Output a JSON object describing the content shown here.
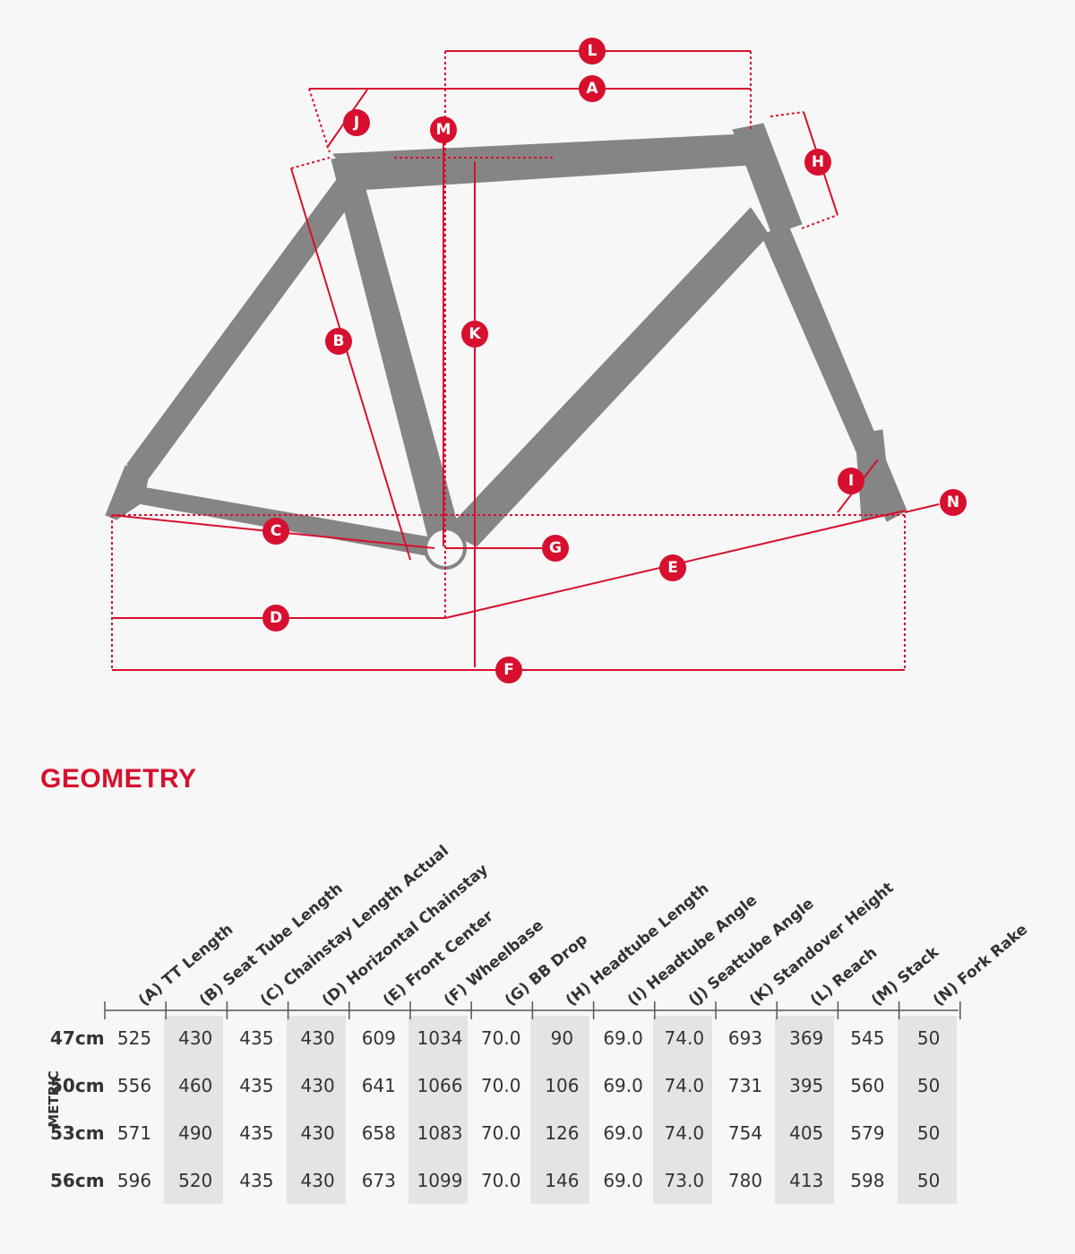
{
  "diagram": {
    "markers": [
      "A",
      "B",
      "C",
      "D",
      "E",
      "F",
      "G",
      "H",
      "I",
      "J",
      "K",
      "L",
      "M",
      "N"
    ],
    "accent_color": "#d6102e",
    "frame_color": "#858585"
  },
  "section_title": "GEOMETRY",
  "unit_label": "METRIC",
  "table": {
    "columns": [
      "(A) TT Length",
      "(B) Seat Tube Length",
      "(C) Chainstay Length Actual",
      "(D) Horizontal Chainstay",
      "(E) Front Center",
      "(F) Wheelbase",
      "(G) BB Drop",
      "(H) Headtube Length",
      "(I) Headtube Angle",
      "(J) Seattube Angle",
      "(K) Standover Height",
      "(L) Reach",
      "(M) Stack",
      "(N) Fork Rake"
    ],
    "rows": [
      {
        "size": "47cm",
        "values": [
          "525",
          "430",
          "435",
          "430",
          "609",
          "1034",
          "70.0",
          "90",
          "69.0",
          "74.0",
          "693",
          "369",
          "545",
          "50"
        ]
      },
      {
        "size": "50cm",
        "values": [
          "556",
          "460",
          "435",
          "430",
          "641",
          "1066",
          "70.0",
          "106",
          "69.0",
          "74.0",
          "731",
          "395",
          "560",
          "50"
        ]
      },
      {
        "size": "53cm",
        "values": [
          "571",
          "490",
          "435",
          "430",
          "658",
          "1083",
          "70.0",
          "126",
          "69.0",
          "74.0",
          "754",
          "405",
          "579",
          "50"
        ]
      },
      {
        "size": "56cm",
        "values": [
          "596",
          "520",
          "435",
          "430",
          "673",
          "1099",
          "70.0",
          "146",
          "69.0",
          "73.0",
          "780",
          "413",
          "598",
          "50"
        ]
      }
    ]
  }
}
